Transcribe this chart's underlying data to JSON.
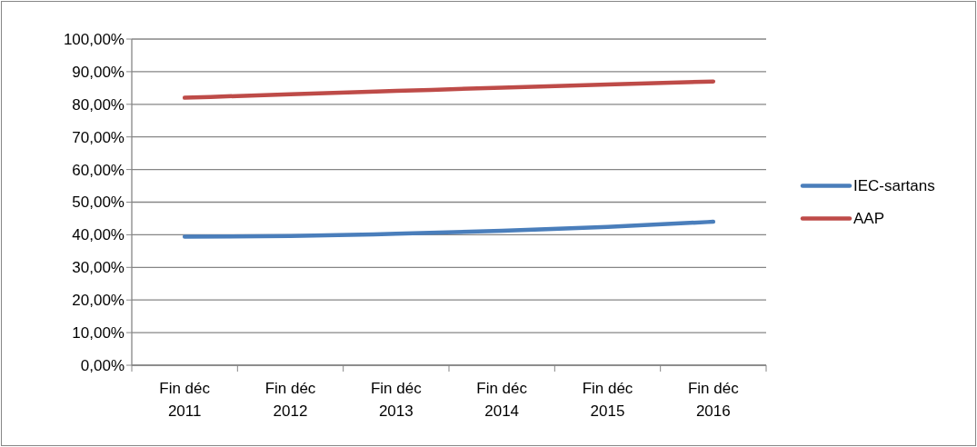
{
  "chart_data": {
    "type": "line",
    "categories": [
      "Fin déc 2011",
      "Fin déc 2012",
      "Fin déc 2013",
      "Fin déc 2014",
      "Fin déc 2015",
      "Fin déc 2016"
    ],
    "series": [
      {
        "name": "IEC-sartans",
        "color": "#4a7ebb",
        "values": [
          39.4,
          39.6,
          40.3,
          41.2,
          42.4,
          44.0
        ]
      },
      {
        "name": "AAP",
        "color": "#be4b48",
        "values": [
          82.0,
          83.1,
          84.1,
          85.1,
          86.1,
          87.0
        ]
      }
    ],
    "ylim": [
      0,
      100
    ],
    "yticks": [
      {
        "value": 0,
        "label": "0,00%"
      },
      {
        "value": 10,
        "label": "10,00%"
      },
      {
        "value": 20,
        "label": "20,00%"
      },
      {
        "value": 30,
        "label": "30,00%"
      },
      {
        "value": 40,
        "label": "40,00%"
      },
      {
        "value": 50,
        "label": "50,00%"
      },
      {
        "value": 60,
        "label": "60,00%"
      },
      {
        "value": 70,
        "label": "70,00%"
      },
      {
        "value": 80,
        "label": "80,00%"
      },
      {
        "value": 90,
        "label": "90,00%"
      },
      {
        "value": 100,
        "label": "100,00%"
      }
    ],
    "grid": "y",
    "legend": "right",
    "marker": "none",
    "line_style": "solid"
  }
}
